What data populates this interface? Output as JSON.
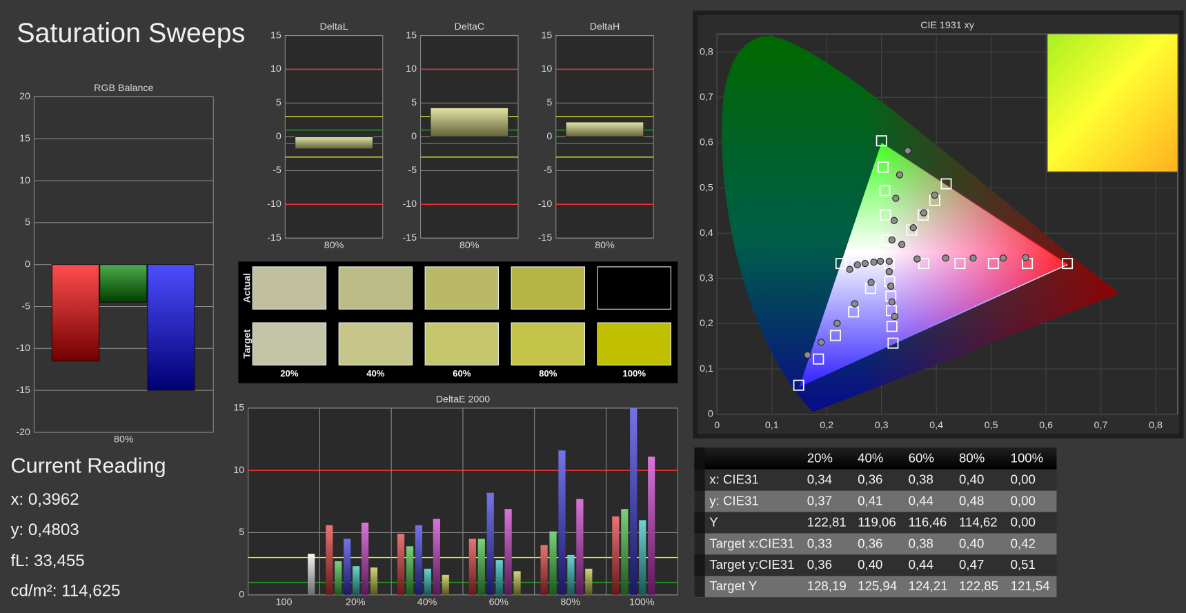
{
  "title": "Saturation Sweeps",
  "chart_data": [
    {
      "type": "bar",
      "title": "RGB Balance",
      "categories": [
        "80%"
      ],
      "series": [
        {
          "color": "#ff0000",
          "values": [
            -11.5
          ]
        },
        {
          "color": "#008a00",
          "values": [
            -4.5
          ]
        },
        {
          "color": "#0000ff",
          "values": [
            -15
          ]
        }
      ],
      "ylim": [
        -20,
        20
      ],
      "yticks": [
        -20,
        -15,
        -10,
        -5,
        0,
        5,
        10,
        15,
        20
      ],
      "grid": true
    },
    {
      "type": "box",
      "title": "DeltaL",
      "categories": [
        "80%"
      ],
      "values": [
        -1.8
      ],
      "color": "#d8d880",
      "ylim": [
        -15,
        15
      ],
      "yticks": [
        -15,
        -10,
        -5,
        0,
        5,
        10,
        15
      ],
      "grid": true,
      "ref_lines": [
        {
          "value": 10,
          "color": "#ff3030"
        },
        {
          "value": -10,
          "color": "#ff3030"
        },
        {
          "value": 3,
          "color": "#e8e830"
        },
        {
          "value": -3,
          "color": "#e8e830"
        },
        {
          "value": 1,
          "color": "#20a020"
        },
        {
          "value": -1,
          "color": "#20a020"
        }
      ]
    },
    {
      "type": "box",
      "title": "DeltaC",
      "categories": [
        "80%"
      ],
      "values": [
        4.3
      ],
      "color": "#d8d880",
      "ylim": [
        -15,
        15
      ],
      "yticks": [
        -15,
        -10,
        -5,
        0,
        5,
        10,
        15
      ],
      "grid": true,
      "ref_lines": [
        {
          "value": 10,
          "color": "#ff3030"
        },
        {
          "value": -10,
          "color": "#ff3030"
        },
        {
          "value": 3,
          "color": "#e8e830"
        },
        {
          "value": -3,
          "color": "#e8e830"
        },
        {
          "value": 1,
          "color": "#20a020"
        },
        {
          "value": -1,
          "color": "#20a020"
        }
      ]
    },
    {
      "type": "box",
      "title": "DeltaH",
      "categories": [
        "80%"
      ],
      "values": [
        2.2
      ],
      "color": "#d8d880",
      "ylim": [
        -15,
        15
      ],
      "yticks": [
        -15,
        -10,
        -5,
        0,
        5,
        10,
        15
      ],
      "grid": true,
      "ref_lines": [
        {
          "value": 10,
          "color": "#ff3030"
        },
        {
          "value": -10,
          "color": "#ff3030"
        },
        {
          "value": 3,
          "color": "#e8e830"
        },
        {
          "value": -3,
          "color": "#e8e830"
        },
        {
          "value": 1,
          "color": "#20a020"
        },
        {
          "value": -1,
          "color": "#20a020"
        }
      ]
    },
    {
      "type": "grouped_bar",
      "title": "DeltaE 2000",
      "categories": [
        "100",
        "20%",
        "40%",
        "60%",
        "80%",
        "100%"
      ],
      "series": [
        {
          "color": "#e03838",
          "values": [
            null,
            5.6,
            4.9,
            4.5,
            4.0,
            6.3
          ]
        },
        {
          "color": "#40c040",
          "values": [
            null,
            2.7,
            3.9,
            4.5,
            5.1,
            6.9
          ]
        },
        {
          "color": "#3838e0",
          "values": [
            null,
            4.5,
            5.6,
            8.2,
            11.6,
            15
          ]
        },
        {
          "color": "#30c0c0",
          "values": [
            null,
            2.3,
            2.1,
            2.8,
            3.2,
            6.0
          ]
        },
        {
          "color": "#c838c8",
          "values": [
            null,
            5.8,
            6.1,
            6.9,
            7.7,
            11.1
          ]
        },
        {
          "color": "#c0c040",
          "values": [
            null,
            2.2,
            1.6,
            1.9,
            2.1,
            null
          ]
        },
        {
          "color": "#f0f0f0",
          "values": [
            3.3,
            null,
            null,
            null,
            null,
            null
          ]
        }
      ],
      "ylim": [
        0,
        15
      ],
      "yticks": [
        0,
        5,
        10,
        15
      ],
      "grid": true,
      "ref_lines": [
        {
          "value": 10,
          "color": "#ff3030"
        },
        {
          "value": 3,
          "color": "#e8e830"
        },
        {
          "value": 1,
          "color": "#20a020"
        }
      ]
    },
    {
      "type": "scatter",
      "title": "CIE 1931 xy",
      "xlim": [
        0,
        0.84
      ],
      "ylim": [
        0,
        0.84
      ],
      "xticks": [
        0,
        {
          "value": 0.1,
          "label": "0,1"
        },
        {
          "value": 0.2,
          "label": "0,2"
        },
        {
          "value": 0.3,
          "label": "0,3"
        },
        {
          "value": 0.4,
          "label": "0,4"
        },
        {
          "value": 0.5,
          "label": "0,5"
        },
        {
          "value": 0.6,
          "label": "0,6"
        },
        {
          "value": 0.7,
          "label": "0,7"
        },
        {
          "value": 0.8,
          "label": "0,8"
        }
      ],
      "yticks": [
        0,
        {
          "value": 0.1,
          "label": "0,1"
        },
        {
          "value": 0.2,
          "label": "0,2"
        },
        {
          "value": 0.3,
          "label": "0,3"
        },
        {
          "value": 0.4,
          "label": "0,4"
        },
        {
          "value": 0.5,
          "label": "0,5"
        },
        {
          "value": 0.6,
          "label": "0,6"
        },
        {
          "value": 0.7,
          "label": "0,7"
        },
        {
          "value": 0.8,
          "label": "0,8"
        }
      ],
      "gamut": {
        "x": [
          0.64,
          0.3,
          0.15
        ],
        "y": [
          0.33,
          0.6,
          0.06
        ]
      },
      "series": [
        {
          "marker": "square",
          "color": "#ffffff",
          "x": [
            0.149,
            0.185,
            0.216,
            0.249,
            0.28,
            0.314,
            0.377,
            0.443,
            0.504,
            0.566,
            0.639,
            0.3,
            0.303,
            0.306,
            0.307,
            0.31,
            0.226,
            0.315,
            0.317,
            0.318,
            0.319,
            0.321,
            0.355,
            0.376,
            0.397,
            0.418
          ],
          "y": [
            0.064,
            0.122,
            0.174,
            0.226,
            0.278,
            0.333,
            0.333,
            0.333,
            0.333,
            0.333,
            0.333,
            0.604,
            0.546,
            0.494,
            0.44,
            0.385,
            0.333,
            0.293,
            0.261,
            0.229,
            0.194,
            0.157,
            0.407,
            0.44,
            0.472,
            0.509
          ]
        },
        {
          "marker": "circle",
          "color": "#8c8c8c",
          "x": [
            0.165,
            0.19,
            0.219,
            0.251,
            0.281,
            0.348,
            0.333,
            0.326,
            0.323,
            0.319,
            0.365,
            0.417,
            0.467,
            0.522,
            0.563,
            0.242,
            0.256,
            0.27,
            0.286,
            0.298,
            0.314,
            0.317,
            0.319,
            0.324,
            0.337,
            0.358,
            0.377,
            0.397,
            0.314
          ],
          "y": [
            0.131,
            0.159,
            0.201,
            0.244,
            0.291,
            0.582,
            0.529,
            0.477,
            0.428,
            0.385,
            0.343,
            0.345,
            0.345,
            0.345,
            0.346,
            0.32,
            0.33,
            0.333,
            0.336,
            0.338,
            0.315,
            0.283,
            0.248,
            0.216,
            0.375,
            0.412,
            0.445,
            0.484,
            0.338
          ]
        }
      ]
    }
  ],
  "current_reading": {
    "title": "Current Reading",
    "lines": [
      "x: 0,3962",
      "y: 0,4803",
      "fL: 33,455",
      "cd/m²: 114,625"
    ]
  },
  "swatches": {
    "row_labels": [
      "Actual",
      "Target"
    ],
    "columns": [
      "20%",
      "40%",
      "60%",
      "80%",
      "100%"
    ],
    "actual_colors": [
      "#c0c09f",
      "#bcbc86",
      "#b9b968",
      "#b5b546",
      "#000000"
    ],
    "target_colors": [
      "#c4c4a6",
      "#c6c68b",
      "#c6c66d",
      "#c4c44b",
      "#c0c000"
    ]
  },
  "table": {
    "columns": [
      "20%",
      "40%",
      "60%",
      "80%",
      "100%"
    ],
    "rows": [
      {
        "label": "x: CIE31",
        "cells": [
          "0,34",
          "0,36",
          "0,38",
          "0,40",
          "0,00"
        ]
      },
      {
        "label": "y: CIE31",
        "cells": [
          "0,37",
          "0,41",
          "0,44",
          "0,48",
          "0,00"
        ]
      },
      {
        "label": "Y",
        "cells": [
          "122,81",
          "119,06",
          "116,46",
          "114,62",
          "0,00"
        ]
      },
      {
        "label": "Target x:CIE31",
        "cells": [
          "0,33",
          "0,36",
          "0,38",
          "0,40",
          "0,42"
        ]
      },
      {
        "label": "Target y:CIE31",
        "cells": [
          "0,36",
          "0,40",
          "0,44",
          "0,47",
          "0,51"
        ]
      },
      {
        "label": "Target Y",
        "cells": [
          "128,19",
          "125,94",
          "124,21",
          "122,85",
          "121,54"
        ]
      }
    ]
  }
}
